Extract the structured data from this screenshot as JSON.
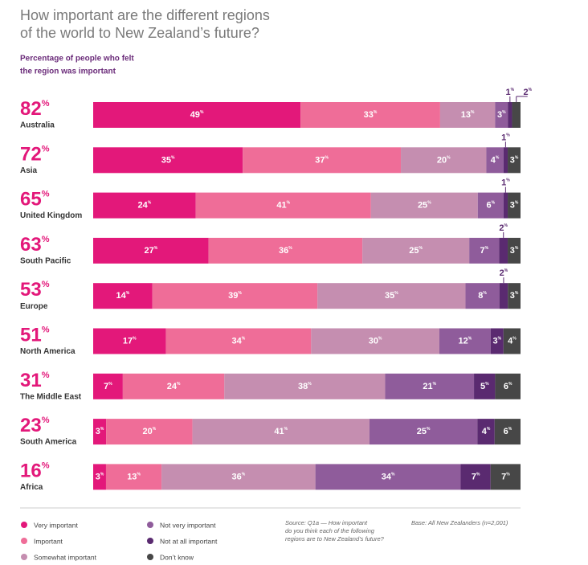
{
  "chart_data": {
    "type": "stacked-bar-100",
    "title": [
      "How important are the different regions",
      "of the world to New Zealand’s future?"
    ],
    "subtitle": [
      "Percentage of people who felt",
      "the region was important"
    ],
    "unit": "%",
    "categories": [
      "Australia",
      "Asia",
      "United Kingdom",
      "South Pacific",
      "Europe",
      "North America",
      "The Middle East",
      "South America",
      "Africa"
    ],
    "headline_values": [
      82,
      72,
      65,
      63,
      53,
      51,
      31,
      23,
      16
    ],
    "series": [
      {
        "name": "Very important",
        "color": "#e3187a",
        "values": [
          49,
          35,
          24,
          27,
          14,
          17,
          7,
          3,
          3
        ]
      },
      {
        "name": "Important",
        "color": "#ef6d98",
        "values": [
          33,
          37,
          41,
          36,
          39,
          34,
          24,
          20,
          13
        ]
      },
      {
        "name": "Somewhat important",
        "color": "#c58eb0",
        "values": [
          13,
          20,
          25,
          25,
          35,
          30,
          38,
          41,
          36
        ]
      },
      {
        "name": "Not very important",
        "color": "#8f5c9b",
        "values": [
          3,
          4,
          6,
          7,
          8,
          12,
          21,
          25,
          34
        ]
      },
      {
        "name": "Not at all important",
        "color": "#5a2a70",
        "values": [
          1,
          1,
          1,
          2,
          2,
          3,
          5,
          4,
          7
        ]
      },
      {
        "name": "Don’t know",
        "color": "#474747",
        "values": [
          2,
          3,
          3,
          3,
          3,
          4,
          6,
          6,
          7
        ]
      }
    ],
    "source": [
      "Source: Q1a — How important",
      "do you think each of the following",
      "regions are to New Zealand’s future?"
    ],
    "base": "Base: All New Zealanders (n=2,001)"
  }
}
